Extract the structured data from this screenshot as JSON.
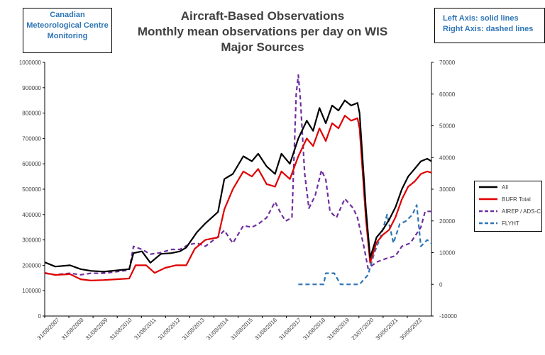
{
  "title_lines": [
    "Aircraft-Based Observations",
    "Monthly mean observations per day on WIS",
    "Major Sources"
  ],
  "org_lines": [
    "Canadian",
    "Meteorological Centre",
    "Monitoring"
  ],
  "axis_note_lines": [
    "Left Axis: solid lines",
    "Right Axis: dashed lines"
  ],
  "colors": {
    "all": "#000000",
    "bufr": "#e00000",
    "airep": "#7030a0",
    "flyht": "#2e75b6",
    "note_text": "#2e75b6"
  },
  "chart_data": {
    "type": "line",
    "x_tick_labels": [
      "31/08/2007",
      "31/08/2008",
      "31/08/2009",
      "31/08/2010",
      "31/08/2011",
      "31/08/2012",
      "31/08/2013",
      "31/08/2014",
      "31/08/2015",
      "31/08/2016",
      "31/08/2017",
      "31/08/2018",
      "31/08/2019",
      "23/07/2020",
      "30/06/2021",
      "30/06/2022"
    ],
    "x_range": [
      "2007-08",
      "2022-11"
    ],
    "y_left": {
      "min": 0,
      "max": 1000000,
      "step": 100000,
      "tick_labels": [
        "0",
        "100000",
        "200000",
        "300000",
        "400000",
        "500000",
        "600000",
        "700000",
        "800000",
        "900000",
        "1000000"
      ]
    },
    "y_right": {
      "min": -10000,
      "max": 70000,
      "step": 10000,
      "tick_labels": [
        "-10000",
        "0",
        "10000",
        "20000",
        "30000",
        "40000",
        "50000",
        "60000",
        "70000"
      ]
    },
    "legend_position": "right",
    "series": [
      {
        "name": "All",
        "axis": "left",
        "style": "solid",
        "color": "#000000",
        "points": [
          [
            "2007-08",
            212000
          ],
          [
            "2008-01",
            195000
          ],
          [
            "2008-08",
            200000
          ],
          [
            "2009-01",
            185000
          ],
          [
            "2009-06",
            178000
          ],
          [
            "2009-12",
            175000
          ],
          [
            "2010-06",
            180000
          ],
          [
            "2010-12",
            185000
          ],
          [
            "2011-02",
            248000
          ],
          [
            "2011-06",
            255000
          ],
          [
            "2011-10",
            210000
          ],
          [
            "2012-03",
            245000
          ],
          [
            "2012-08",
            248000
          ],
          [
            "2012-12",
            255000
          ],
          [
            "2013-03",
            270000
          ],
          [
            "2013-08",
            330000
          ],
          [
            "2013-12",
            365000
          ],
          [
            "2014-06",
            410000
          ],
          [
            "2014-09",
            540000
          ],
          [
            "2015-01",
            560000
          ],
          [
            "2015-06",
            630000
          ],
          [
            "2015-10",
            610000
          ],
          [
            "2016-01",
            640000
          ],
          [
            "2016-05",
            590000
          ],
          [
            "2016-09",
            560000
          ],
          [
            "2016-12",
            640000
          ],
          [
            "2017-04",
            600000
          ],
          [
            "2017-08",
            700000
          ],
          [
            "2017-12",
            770000
          ],
          [
            "2018-03",
            730000
          ],
          [
            "2018-06",
            820000
          ],
          [
            "2018-09",
            760000
          ],
          [
            "2018-12",
            830000
          ],
          [
            "2019-03",
            810000
          ],
          [
            "2019-06",
            850000
          ],
          [
            "2019-09",
            830000
          ],
          [
            "2019-12",
            840000
          ],
          [
            "2020-01",
            800000
          ],
          [
            "2020-04",
            420000
          ],
          [
            "2020-06",
            230000
          ],
          [
            "2020-09",
            310000
          ],
          [
            "2020-12",
            340000
          ],
          [
            "2021-03",
            380000
          ],
          [
            "2021-06",
            430000
          ],
          [
            "2021-09",
            500000
          ],
          [
            "2021-12",
            550000
          ],
          [
            "2022-03",
            580000
          ],
          [
            "2022-06",
            610000
          ],
          [
            "2022-09",
            620000
          ],
          [
            "2022-11",
            610000
          ]
        ]
      },
      {
        "name": "BUFR Total",
        "axis": "left",
        "style": "solid",
        "color": "#e00000",
        "points": [
          [
            "2007-08",
            170000
          ],
          [
            "2008-01",
            162000
          ],
          [
            "2008-08",
            165000
          ],
          [
            "2009-01",
            145000
          ],
          [
            "2009-06",
            140000
          ],
          [
            "2009-12",
            142000
          ],
          [
            "2010-06",
            145000
          ],
          [
            "2010-12",
            148000
          ],
          [
            "2011-03",
            200000
          ],
          [
            "2011-08",
            200000
          ],
          [
            "2011-12",
            170000
          ],
          [
            "2012-05",
            190000
          ],
          [
            "2012-10",
            200000
          ],
          [
            "2013-03",
            200000
          ],
          [
            "2013-07",
            265000
          ],
          [
            "2013-12",
            300000
          ],
          [
            "2014-06",
            310000
          ],
          [
            "2014-09",
            420000
          ],
          [
            "2015-01",
            500000
          ],
          [
            "2015-06",
            570000
          ],
          [
            "2015-10",
            550000
          ],
          [
            "2016-01",
            580000
          ],
          [
            "2016-05",
            520000
          ],
          [
            "2016-09",
            510000
          ],
          [
            "2016-12",
            570000
          ],
          [
            "2017-04",
            540000
          ],
          [
            "2017-08",
            630000
          ],
          [
            "2017-12",
            700000
          ],
          [
            "2018-03",
            670000
          ],
          [
            "2018-06",
            740000
          ],
          [
            "2018-09",
            690000
          ],
          [
            "2018-12",
            760000
          ],
          [
            "2019-03",
            740000
          ],
          [
            "2019-06",
            790000
          ],
          [
            "2019-09",
            770000
          ],
          [
            "2019-12",
            780000
          ],
          [
            "2020-01",
            740000
          ],
          [
            "2020-04",
            380000
          ],
          [
            "2020-06",
            210000
          ],
          [
            "2020-09",
            290000
          ],
          [
            "2020-12",
            320000
          ],
          [
            "2021-03",
            340000
          ],
          [
            "2021-06",
            390000
          ],
          [
            "2021-09",
            460000
          ],
          [
            "2021-12",
            510000
          ],
          [
            "2022-03",
            530000
          ],
          [
            "2022-06",
            560000
          ],
          [
            "2022-09",
            570000
          ],
          [
            "2022-11",
            565000
          ]
        ]
      },
      {
        "name": "AIREP / ADS-C",
        "axis": "right",
        "style": "dashed",
        "color": "#7030a0",
        "points": [
          [
            "2007-08",
            3500
          ],
          [
            "2008-01",
            3000
          ],
          [
            "2008-08",
            3500
          ],
          [
            "2009-01",
            3000
          ],
          [
            "2009-06",
            3500
          ],
          [
            "2009-12",
            3500
          ],
          [
            "2010-06",
            4000
          ],
          [
            "2010-12",
            4500
          ],
          [
            "2011-02",
            12000
          ],
          [
            "2011-06",
            11000
          ],
          [
            "2011-10",
            9500
          ],
          [
            "2012-03",
            10000
          ],
          [
            "2012-08",
            11000
          ],
          [
            "2012-12",
            11000
          ],
          [
            "2013-04",
            12500
          ],
          [
            "2013-08",
            13000
          ],
          [
            "2013-12",
            12000
          ],
          [
            "2014-06",
            15000
          ],
          [
            "2014-09",
            17000
          ],
          [
            "2015-01",
            13000
          ],
          [
            "2015-06",
            18500
          ],
          [
            "2015-10",
            18000
          ],
          [
            "2016-01",
            19000
          ],
          [
            "2016-05",
            21000
          ],
          [
            "2016-09",
            26000
          ],
          [
            "2016-12",
            22000
          ],
          [
            "2017-02",
            20000
          ],
          [
            "2017-05",
            21000
          ],
          [
            "2017-07",
            60000
          ],
          [
            "2017-08",
            66000
          ],
          [
            "2017-09",
            58000
          ],
          [
            "2017-11",
            35000
          ],
          [
            "2018-01",
            24000
          ],
          [
            "2018-04",
            28000
          ],
          [
            "2018-07",
            36000
          ],
          [
            "2018-09",
            33000
          ],
          [
            "2018-11",
            23000
          ],
          [
            "2019-02",
            21000
          ],
          [
            "2019-06",
            27000
          ],
          [
            "2019-10",
            24000
          ],
          [
            "2019-12",
            21000
          ],
          [
            "2020-03",
            12000
          ],
          [
            "2020-05",
            5000
          ],
          [
            "2020-09",
            7000
          ],
          [
            "2021-01",
            8000
          ],
          [
            "2021-06",
            9000
          ],
          [
            "2021-09",
            12000
          ],
          [
            "2022-01",
            13000
          ],
          [
            "2022-03",
            15000
          ],
          [
            "2022-06",
            18000
          ],
          [
            "2022-08",
            23000
          ],
          [
            "2022-11",
            23000
          ]
        ]
      },
      {
        "name": "FLYHT",
        "axis": "right",
        "style": "dashed",
        "color": "#2e75b6",
        "points": [
          [
            "2017-08",
            0
          ],
          [
            "2018-08",
            0
          ],
          [
            "2018-09",
            3500
          ],
          [
            "2019-01",
            3500
          ],
          [
            "2019-04",
            0
          ],
          [
            "2020-01",
            0
          ],
          [
            "2020-05",
            3000
          ],
          [
            "2020-08",
            10000
          ],
          [
            "2020-11",
            15000
          ],
          [
            "2021-02",
            22000
          ],
          [
            "2021-05",
            13000
          ],
          [
            "2021-08",
            19000
          ],
          [
            "2021-11",
            20000
          ],
          [
            "2022-02",
            22000
          ],
          [
            "2022-04",
            25000
          ],
          [
            "2022-06",
            12000
          ],
          [
            "2022-09",
            14000
          ],
          [
            "2022-11",
            13000
          ]
        ]
      }
    ]
  }
}
